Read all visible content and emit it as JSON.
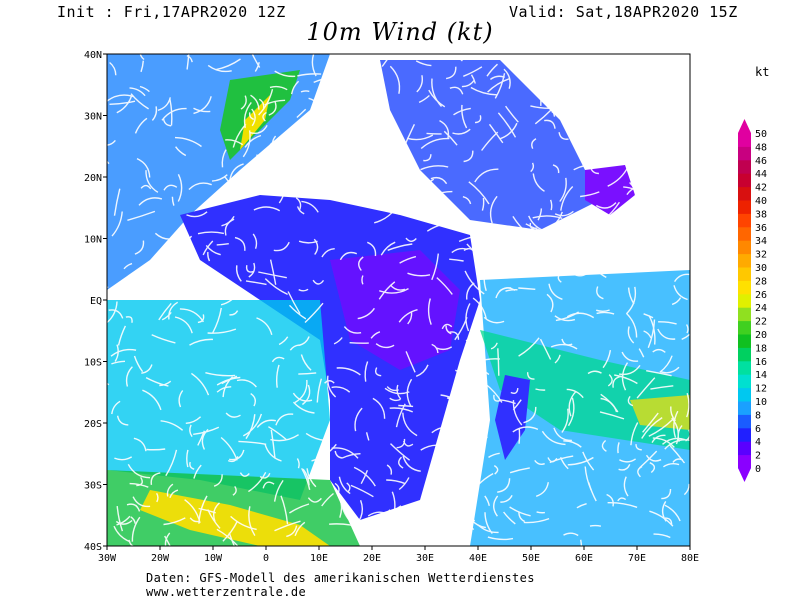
{
  "header": {
    "init": "Init : Fri,17APR2020 12Z",
    "valid": "Valid: Sat,18APR2020 15Z",
    "title": "10m Wind (kt)"
  },
  "map": {
    "lon_range": [
      -30,
      80
    ],
    "lat_range": [
      -40,
      40
    ],
    "lat_labels": [
      {
        "value": 40,
        "text": "40N"
      },
      {
        "value": 30,
        "text": "30N"
      },
      {
        "value": 20,
        "text": "20N"
      },
      {
        "value": 10,
        "text": "10N"
      },
      {
        "value": 0,
        "text": "EQ"
      },
      {
        "value": -10,
        "text": "10S"
      },
      {
        "value": -20,
        "text": "20S"
      },
      {
        "value": -30,
        "text": "30S"
      },
      {
        "value": -40,
        "text": "40S"
      }
    ],
    "lon_labels": [
      {
        "value": -30,
        "text": "30W"
      },
      {
        "value": -20,
        "text": "20W"
      },
      {
        "value": -10,
        "text": "10W"
      },
      {
        "value": 0,
        "text": "0"
      },
      {
        "value": 10,
        "text": "10E"
      },
      {
        "value": 20,
        "text": "20E"
      },
      {
        "value": 30,
        "text": "30E"
      },
      {
        "value": 40,
        "text": "40E"
      },
      {
        "value": 50,
        "text": "50E"
      },
      {
        "value": 60,
        "text": "60E"
      },
      {
        "value": 70,
        "text": "70E"
      },
      {
        "value": 80,
        "text": "80E"
      }
    ]
  },
  "colorbar": {
    "unit": "kt",
    "levels": [
      0,
      2,
      4,
      6,
      8,
      10,
      12,
      14,
      16,
      18,
      20,
      22,
      24,
      26,
      28,
      30,
      32,
      34,
      36,
      38,
      40,
      42,
      44,
      46,
      48,
      50
    ],
    "colors": [
      "#8a00ff",
      "#5a00ff",
      "#2020ff",
      "#1a5cff",
      "#1aa0ff",
      "#00c8f0",
      "#00e0d0",
      "#00e0a0",
      "#00d060",
      "#10c020",
      "#40d020",
      "#90e020",
      "#e0f000",
      "#ffe000",
      "#ffc800",
      "#ffaa00",
      "#ff8800",
      "#ff6600",
      "#ff4400",
      "#ee2200",
      "#d81010",
      "#c80030",
      "#c00050",
      "#c80080",
      "#e000a0"
    ]
  },
  "footer": {
    "credit": "Daten: GFS-Modell des amerikanischen Wetterdienstes",
    "url": "www.wetterzentrale.de"
  }
}
